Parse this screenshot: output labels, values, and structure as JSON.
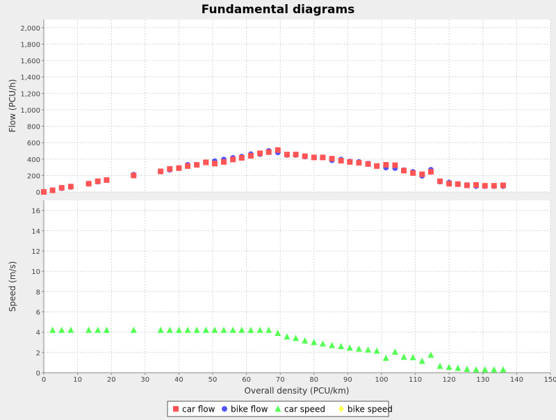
{
  "chart_data": {
    "title": "Fundamental diagrams",
    "type": "scatter",
    "xlabel": "Overall density (PCU/km)",
    "xlim": [
      0,
      150
    ],
    "xticks": [
      0,
      10,
      20,
      30,
      40,
      50,
      60,
      70,
      80,
      90,
      100,
      110,
      120,
      130,
      140,
      150
    ],
    "grid": true,
    "legend_placement": "bottom",
    "colors": {
      "background": "#eeeeee",
      "plot_background": "#ffffff",
      "grid": "#d4d4d4",
      "car_flow": "#ff5555",
      "bike_flow": "#5555ff",
      "car_speed": "#55ff55",
      "bike_speed": "#ffff55"
    },
    "legend": [
      {
        "name": "car flow",
        "marker": "square",
        "color": "#ff5555"
      },
      {
        "name": "bike flow",
        "marker": "circle",
        "color": "#5555ff"
      },
      {
        "name": "car speed",
        "marker": "triangle",
        "color": "#55ff55"
      },
      {
        "name": "bike speed",
        "marker": "diamond",
        "color": "#ffff55"
      }
    ],
    "panels": [
      {
        "ylabel": "Flow (PCU/h)",
        "ylim": [
          0,
          2100
        ],
        "yticks": [
          0,
          200,
          400,
          600,
          800,
          1000,
          1200,
          1400,
          1600,
          1800,
          2000
        ],
        "ytick_labels": [
          "0",
          "200",
          "400",
          "600",
          "800",
          "1,000",
          "1,200",
          "1,400",
          "1,600",
          "1,800",
          "2,000"
        ],
        "series": [
          {
            "name": "bike flow",
            "marker": "circle",
            "color": "#5555ff",
            "x": [
              0,
              2.6,
              5.3,
              8,
              13.3,
              16,
              18.6,
              26.6,
              34.6,
              37.3,
              40,
              42.6,
              45.3,
              48,
              50.6,
              53.3,
              56,
              58.6,
              61.3,
              64,
              66.6,
              69.3,
              72,
              74.6,
              77.3,
              80,
              82.6,
              85.3,
              88,
              90.6,
              93.3,
              96,
              98.6,
              101.3,
              104,
              106.6,
              109.3,
              112,
              114.6,
              117.3,
              120,
              122.6,
              125.3,
              128,
              130.6,
              133.3,
              136
            ],
            "y": [
              0,
              20,
              45,
              60,
              100,
              125,
              145,
              210,
              250,
              270,
              290,
              330,
              330,
              360,
              375,
              395,
              415,
              430,
              460,
              460,
              500,
              480,
              450,
              450,
              430,
              420,
              420,
              385,
              395,
              370,
              365,
              345,
              315,
              295,
              290,
              265,
              245,
              195,
              270,
              125,
              115,
              95,
              85,
              70,
              70,
              70,
              70
            ]
          },
          {
            "name": "car flow",
            "marker": "square",
            "color": "#ff5555",
            "x": [
              0,
              2.6,
              5.3,
              8,
              13.3,
              16,
              18.6,
              26.6,
              34.6,
              37.3,
              40,
              42.6,
              45.3,
              48,
              50.6,
              53.3,
              56,
              58.6,
              61.3,
              64,
              66.6,
              69.3,
              72,
              74.6,
              77.3,
              80,
              82.6,
              85.3,
              88,
              90.6,
              93.3,
              96,
              98.6,
              101.3,
              104,
              106.6,
              109.3,
              112,
              114.6,
              117.3,
              120,
              122.6,
              125.3,
              128,
              130.6,
              133.3,
              136
            ],
            "y": [
              0,
              20,
              50,
              65,
              100,
              130,
              145,
              200,
              250,
              280,
              290,
              315,
              330,
              360,
              345,
              365,
              395,
              415,
              440,
              470,
              485,
              510,
              455,
              455,
              435,
              420,
              420,
              405,
              380,
              365,
              355,
              340,
              315,
              330,
              325,
              260,
              230,
              215,
              245,
              130,
              100,
              95,
              80,
              85,
              75,
              75,
              80
            ]
          }
        ]
      },
      {
        "ylabel": "Speed (m/s)",
        "ylim": [
          0,
          17
        ],
        "yticks": [
          0,
          2,
          4,
          6,
          8,
          10,
          12,
          14,
          16
        ],
        "ytick_labels": [
          "0",
          "2",
          "4",
          "6",
          "8",
          "10",
          "12",
          "14",
          "16"
        ],
        "series": [
          {
            "name": "car speed",
            "marker": "triangle",
            "color": "#55ff55",
            "x": [
              2.6,
              5.3,
              8,
              13.3,
              16,
              18.6,
              26.6,
              34.6,
              37.3,
              40,
              42.6,
              45.3,
              48,
              50.6,
              53.3,
              56,
              58.6,
              61.3,
              64,
              66.6,
              69.3,
              72,
              74.6,
              77.3,
              80,
              82.6,
              85.3,
              88,
              90.6,
              93.3,
              96,
              98.6,
              101.3,
              104,
              106.6,
              109.3,
              112,
              114.6,
              117.3,
              120,
              122.6,
              125.3,
              128,
              130.6,
              133.3,
              136
            ],
            "y": [
              4.2,
              4.2,
              4.2,
              4.2,
              4.2,
              4.2,
              4.2,
              4.2,
              4.2,
              4.2,
              4.2,
              4.2,
              4.2,
              4.2,
              4.2,
              4.2,
              4.2,
              4.2,
              4.2,
              4.2,
              3.9,
              3.55,
              3.4,
              3.15,
              3.0,
              2.85,
              2.7,
              2.6,
              2.45,
              2.35,
              2.25,
              2.15,
              1.45,
              2.05,
              1.55,
              1.5,
              1.15,
              1.75,
              0.65,
              0.55,
              0.45,
              0.35,
              0.3,
              0.3,
              0.3,
              0.3
            ]
          },
          {
            "name": "bike speed",
            "marker": "diamond",
            "color": "#ffff55",
            "x": [],
            "y": []
          }
        ]
      }
    ]
  }
}
